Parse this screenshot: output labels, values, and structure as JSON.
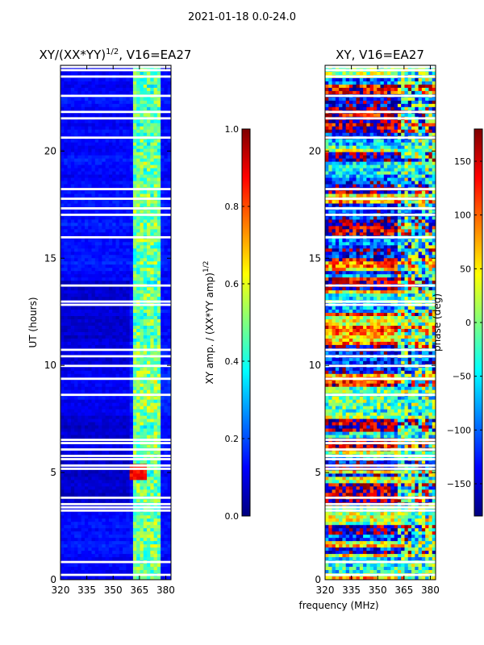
{
  "figure": {
    "suptitle": "2021-01-18 0.0-24.0",
    "common_xlabel": "frequency (MHz)"
  },
  "chart_data": [
    {
      "type": "heatmap",
      "title_main": "XY/(XX*YY)",
      "title_sup": "1/2",
      "title_rest": ", V16=EA27",
      "xlabel": "frequency (MHz)",
      "ylabel": "UT (hours)",
      "xlim": [
        320,
        383
      ],
      "ylim": [
        0,
        24
      ],
      "xticks": [
        320,
        335,
        350,
        365,
        380
      ],
      "yticks": [
        0,
        5,
        10,
        15,
        20
      ],
      "colormap": "jet",
      "colorbar": {
        "label_main": "XY amp. / (XX*YY amp)",
        "label_sup": "1/2",
        "vmin": 0.0,
        "vmax": 1.0,
        "ticks": [
          "0.0",
          "0.2",
          "0.4",
          "0.6",
          "0.8",
          "1.0"
        ],
        "tick_values": [
          0.0,
          0.2,
          0.4,
          0.6,
          0.8,
          1.0
        ]
      },
      "notes": "Mostly low normalized amplitude (0.05-0.2); elevated 0.4-0.6 in channels ~362-378 MHz; peak ~0.9 near 365 MHz at 5 UT; flagged (white) rows throughout."
    },
    {
      "type": "heatmap",
      "title_main": "XY, V16=EA27",
      "xlabel": "frequency (MHz)",
      "ylabel": "",
      "xlim": [
        320,
        383
      ],
      "ylim": [
        0,
        24
      ],
      "xticks": [
        320,
        335,
        350,
        365,
        380
      ],
      "yticks": [
        0,
        5,
        10,
        15,
        20
      ],
      "colormap": "jet",
      "colorbar": {
        "label_main": "phase (deg)",
        "vmin": -180,
        "vmax": 180,
        "ticks": [
          "−150",
          "−100",
          "−50",
          "0",
          "50",
          "100",
          "150"
        ],
        "tick_values": [
          -150,
          -100,
          -50,
          0,
          50,
          100,
          150
        ]
      },
      "notes": "Noisy phase spanning the full -180..180 range with horizontal banding; flagged (white) rows throughout."
    }
  ],
  "colors": {
    "jet_stops": [
      "#00007f",
      "#0000ff",
      "#007fff",
      "#00ffff",
      "#7fff7f",
      "#ffff00",
      "#ff7f00",
      "#ff0000",
      "#7f0000"
    ]
  }
}
